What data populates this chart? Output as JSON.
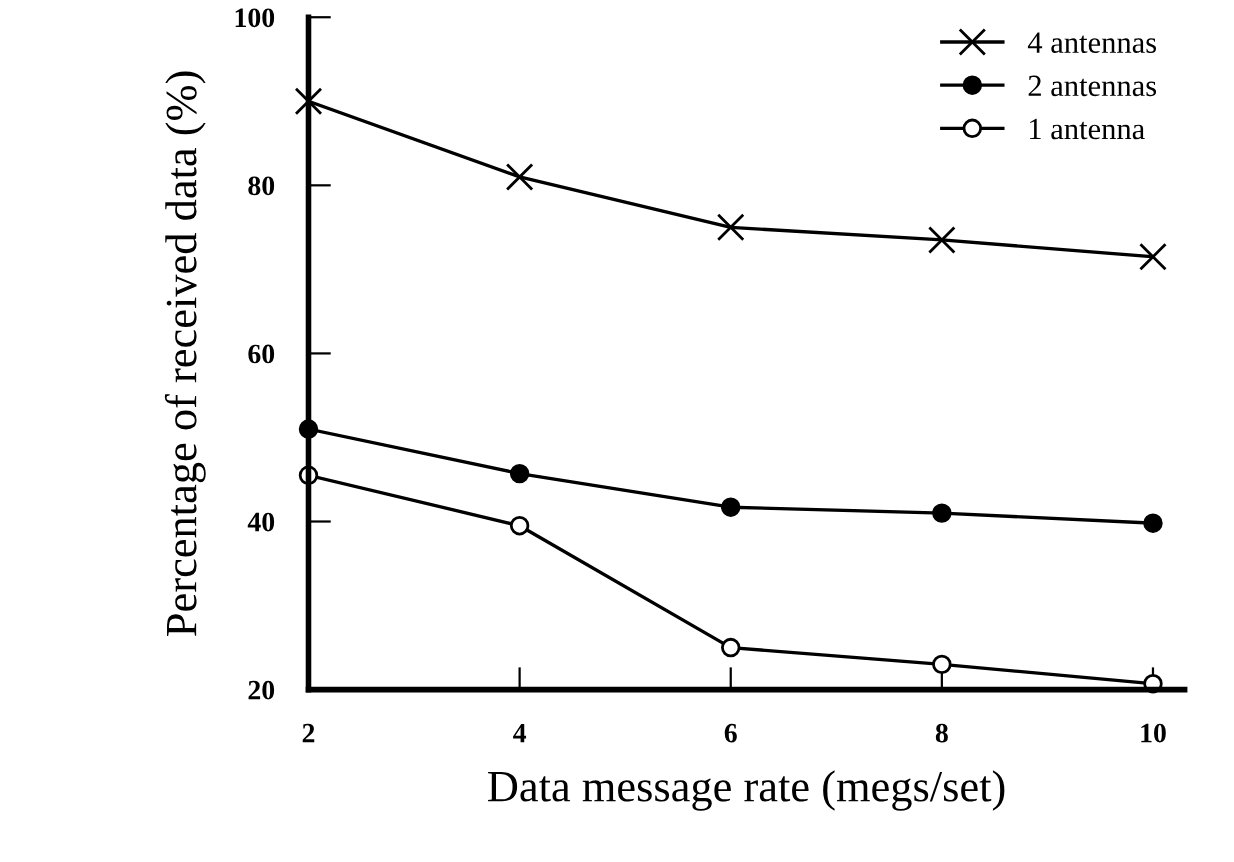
{
  "chart_data": {
    "type": "line",
    "xlabel": "Data message rate (megs/set)",
    "ylabel": "Percentage of received data (%)",
    "x": [
      2,
      4,
      6,
      8,
      10
    ],
    "series": [
      {
        "name": "4 antennas",
        "color": "#000000",
        "marker": "cross",
        "values": [
          90,
          81,
          75,
          73.5,
          71.5
        ]
      },
      {
        "name": "2 antennas",
        "color": "#000000",
        "marker": "circle",
        "values": [
          51,
          45.7,
          41.7,
          41,
          39.8
        ]
      },
      {
        "name": "1 antenna",
        "color": "#000000",
        "marker": "open circle",
        "values": [
          45.5,
          39.5,
          25,
          23,
          20.7
        ]
      }
    ],
    "xlim": [
      2,
      10.3
    ],
    "xticks": [
      2,
      4,
      6,
      8,
      10
    ],
    "ylim": [
      20,
      100
    ],
    "yticks": [
      20,
      40,
      60,
      80,
      100
    ],
    "grid": false,
    "legend": "top right",
    "line_style": "solid"
  }
}
